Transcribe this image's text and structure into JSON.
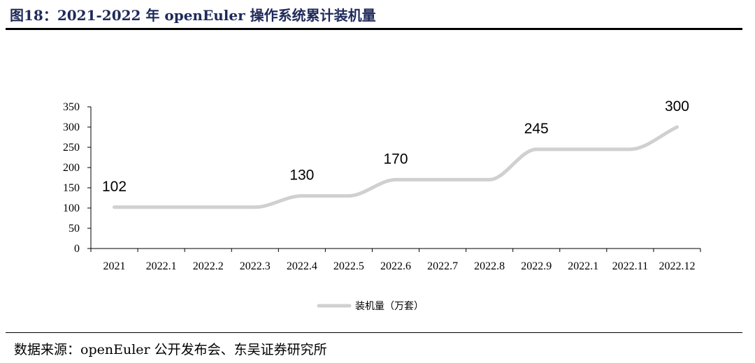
{
  "figure": {
    "title": "图18：2021-2022 年 openEuler 操作系统累计装机量",
    "source": "数据来源：openEuler 公开发布会、东吴证券研究所"
  },
  "chart_data": {
    "type": "line",
    "title": "",
    "xlabel": "",
    "ylabel": "",
    "categories": [
      "2021",
      "2022.1",
      "2022.2",
      "2022.3",
      "2022.4",
      "2022.5",
      "2022.6",
      "2022.7",
      "2022.8",
      "2022.9",
      "2022.1",
      "2022.11",
      "2022.12"
    ],
    "series": [
      {
        "name": "装机量（万套）",
        "values": [
          102,
          102,
          102,
          102,
          130,
          130,
          170,
          170,
          170,
          245,
          245,
          245,
          300
        ],
        "color": "#d0d0d0"
      }
    ],
    "data_labels": [
      {
        "index": 0,
        "text": "102"
      },
      {
        "index": 4,
        "text": "130"
      },
      {
        "index": 6,
        "text": "170"
      },
      {
        "index": 9,
        "text": "245"
      },
      {
        "index": 12,
        "text": "300"
      }
    ],
    "yticks": [
      "0",
      "50",
      "100",
      "150",
      "200",
      "250",
      "300",
      "350"
    ],
    "ylim": [
      0,
      350
    ],
    "grid": false,
    "legend_position": "bottom-center",
    "smooth": true
  }
}
